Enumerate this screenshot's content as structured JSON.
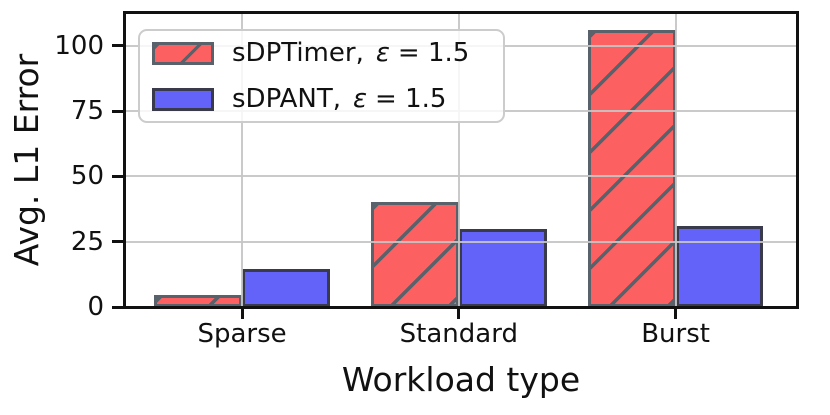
{
  "chart_data": {
    "type": "bar",
    "title": "",
    "xlabel": "Workload type",
    "ylabel": "Avg. L1 Error",
    "categories": [
      "Sparse",
      "Standard",
      "Burst"
    ],
    "series": [
      {
        "name": "sDPTimer",
        "legend_prefix": "sDPTimer,",
        "legend_symbol": "ε",
        "legend_value": "= 1.5",
        "values": [
          4.5,
          40,
          106
        ],
        "fill_color": "#fc6060",
        "edge_color": "#59616b",
        "hatch": "/"
      },
      {
        "name": "sDPANT",
        "legend_prefix": "sDPANT,",
        "legend_symbol": "ε",
        "legend_value": "= 1.5",
        "values": [
          14.5,
          30,
          31
        ],
        "fill_color": "#6363fa",
        "edge_color": "#3a3a4d",
        "hatch": null
      }
    ],
    "yticks": [
      0,
      25,
      50,
      75,
      100
    ],
    "ylim": [
      0,
      112.5
    ],
    "grid": true,
    "grid_color": "rgba(198,198,198,0.92)",
    "legend_position": "upper left",
    "background": "#ffffff",
    "spine_color": "#111111"
  }
}
